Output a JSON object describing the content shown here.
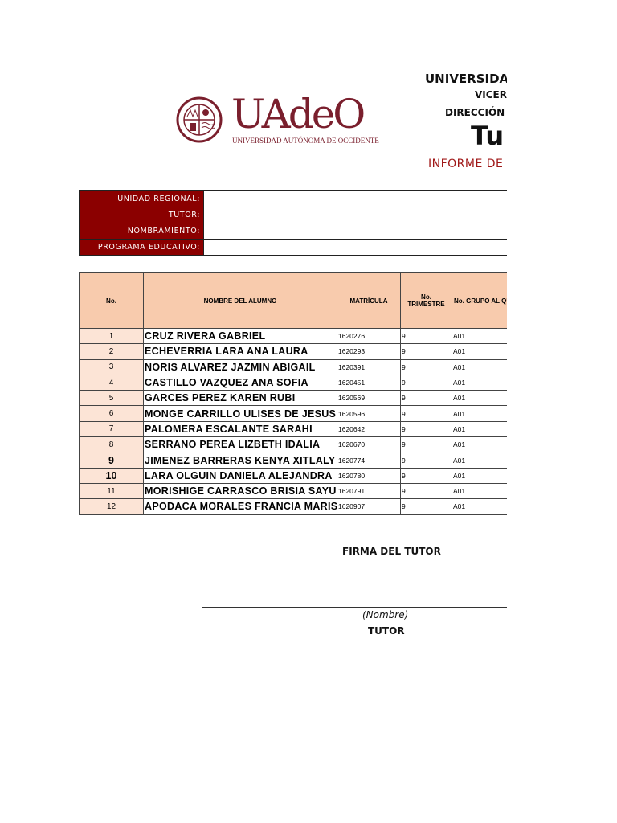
{
  "header": {
    "university": "UNIVERSIDAD",
    "vicerrectoria": "VICERI",
    "direccion": "DIRECCIÓN I",
    "title": "Tu",
    "subtitle": "INFORME DE",
    "logo_text": "UAdeO",
    "logo_subtitle": "UNIVERSIDAD AUTÓNOMA DE OCCIDENTE",
    "brand_color": "#7a1f2d"
  },
  "info": {
    "labels": [
      "UNIDAD REGIONAL:",
      "TUTOR:",
      "NOMBRAMIENTO:",
      "PROGRAMA EDUCATIVO:"
    ],
    "values": [
      "",
      "",
      "",
      ""
    ]
  },
  "students": {
    "headers": [
      "No.",
      "NOMBRE DEL ALUMNO",
      "MATRÍCULA",
      "No. TRIMESTRE",
      "No. GRUPO AL QUE PERTENECE"
    ],
    "rows": [
      {
        "no": "1",
        "name": "CRUZ RIVERA GABRIEL",
        "matricula": "1620276",
        "trimestre": "9",
        "grupo": "A01"
      },
      {
        "no": "2",
        "name": "ECHEVERRIA LARA ANA LAURA",
        "matricula": "1620293",
        "trimestre": "9",
        "grupo": "A01"
      },
      {
        "no": "3",
        "name": "NORIS ALVAREZ JAZMIN ABIGAIL",
        "matricula": "1620391",
        "trimestre": "9",
        "grupo": "A01"
      },
      {
        "no": "4",
        "name": "CASTILLO VAZQUEZ ANA SOFIA",
        "matricula": "1620451",
        "trimestre": "9",
        "grupo": "A01"
      },
      {
        "no": "5",
        "name": "GARCES PEREZ KAREN RUBI",
        "matricula": "1620569",
        "trimestre": "9",
        "grupo": "A01"
      },
      {
        "no": "6",
        "name": "MONGE CARRILLO ULISES DE JESUS",
        "matricula": "1620596",
        "trimestre": "9",
        "grupo": "A01"
      },
      {
        "no": "7",
        "name": "PALOMERA ESCALANTE SARAHI",
        "matricula": "1620642",
        "trimestre": "9",
        "grupo": "A01"
      },
      {
        "no": "8",
        "name": "SERRANO PEREA LIZBETH IDALIA",
        "matricula": "1620670",
        "trimestre": "9",
        "grupo": "A01"
      },
      {
        "no": "9",
        "name": "JIMENEZ BARRERAS KENYA XITLALY",
        "matricula": "1620774",
        "trimestre": "9",
        "grupo": "A01"
      },
      {
        "no": "10",
        "name": "LARA OLGUIN DANIELA ALEJANDRA",
        "matricula": "1620780",
        "trimestre": "9",
        "grupo": "A01"
      },
      {
        "no": "11",
        "name": "MORISHIGE CARRASCO BRISIA SAYUR",
        "matricula": "1620791",
        "trimestre": "9",
        "grupo": "A01"
      },
      {
        "no": "12",
        "name": "APODACA MORALES FRANCIA MARISC",
        "matricula": "1620907",
        "trimestre": "9",
        "grupo": "A01"
      }
    ]
  },
  "signature": {
    "label": "FIRMA DEL TUTOR",
    "name_placeholder": "(Nombre)",
    "role": "TUTOR"
  }
}
